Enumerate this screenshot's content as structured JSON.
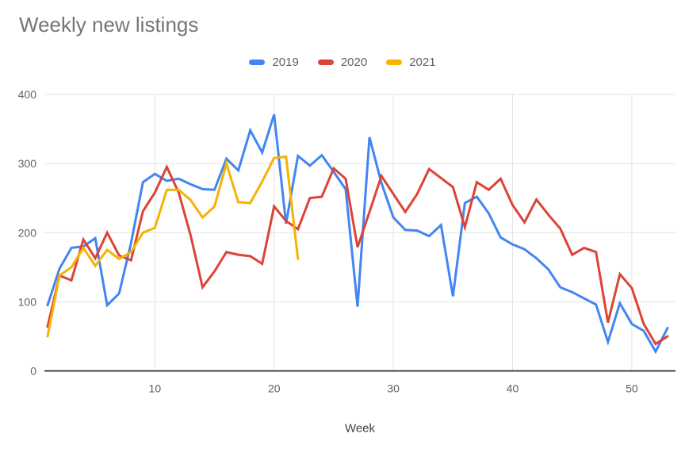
{
  "title": "Weekly new listings",
  "legend": {
    "items": [
      {
        "label": "2019",
        "color": "#4285F4"
      },
      {
        "label": "2020",
        "color": "#DB4437"
      },
      {
        "label": "2021",
        "color": "#F4B400"
      }
    ]
  },
  "colors": {
    "series_2019": "#4285F4",
    "series_2020": "#DB4437",
    "series_2021": "#F4B400",
    "gridline": "#e3e3e3",
    "axis_line": "#424242",
    "tick_label": "#616161",
    "axis_title": "#424242",
    "title_text": "#757575"
  },
  "chart_data": {
    "type": "line",
    "title": "Weekly new listings",
    "xlabel": "Week",
    "ylabel": "",
    "xlim": [
      1,
      53
    ],
    "ylim": [
      0,
      400
    ],
    "x_ticks": [
      10,
      20,
      30,
      40,
      50
    ],
    "y_ticks": [
      0,
      100,
      200,
      300,
      400
    ],
    "grid": true,
    "legend_position": "top-center",
    "x_unit": "week_number_starting_at_1",
    "series": [
      {
        "name": "2019",
        "color": "#4285F4",
        "values": [
          95,
          148,
          178,
          180,
          192,
          95,
          112,
          185,
          273,
          285,
          275,
          278,
          270,
          263,
          262,
          307,
          290,
          348,
          316,
          371,
          213,
          311,
          297,
          312,
          288,
          263,
          93,
          338,
          272,
          222,
          204,
          203,
          195,
          211,
          108,
          243,
          252,
          228,
          193,
          183,
          176,
          163,
          147,
          121,
          114,
          105,
          96,
          42,
          98,
          68,
          58,
          28,
          62
        ]
      },
      {
        "name": "2020",
        "color": "#DB4437",
        "values": [
          64,
          138,
          131,
          190,
          163,
          200,
          167,
          160,
          231,
          258,
          295,
          258,
          196,
          121,
          144,
          172,
          168,
          166,
          155,
          238,
          217,
          205,
          250,
          252,
          293,
          278,
          179,
          230,
          282,
          256,
          230,
          256,
          292,
          279,
          266,
          208,
          273,
          262,
          278,
          240,
          215,
          248,
          226,
          206,
          168,
          178,
          172,
          70,
          140,
          120,
          68,
          39,
          50
        ]
      },
      {
        "name": "2021",
        "color": "#F4B400",
        "values": [
          50,
          138,
          150,
          178,
          152,
          175,
          162,
          172,
          200,
          207,
          262,
          262,
          247,
          222,
          238,
          300,
          244,
          243,
          274,
          308,
          310,
          162
        ]
      }
    ]
  }
}
